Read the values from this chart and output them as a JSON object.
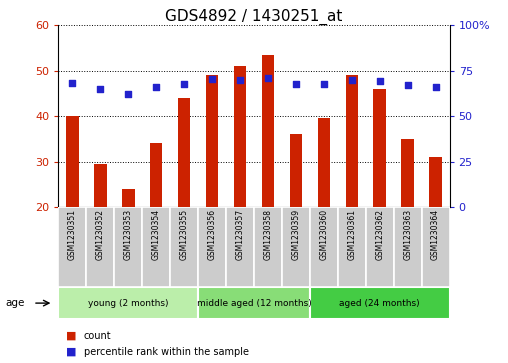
{
  "title": "GDS4892 / 1430251_at",
  "samples": [
    "GSM1230351",
    "GSM1230352",
    "GSM1230353",
    "GSM1230354",
    "GSM1230355",
    "GSM1230356",
    "GSM1230357",
    "GSM1230358",
    "GSM1230359",
    "GSM1230360",
    "GSM1230361",
    "GSM1230362",
    "GSM1230363",
    "GSM1230364"
  ],
  "counts": [
    40,
    29.5,
    24,
    34,
    44,
    49,
    51,
    53.5,
    36,
    39.5,
    49,
    46,
    35,
    31
  ],
  "percentiles": [
    68,
    65,
    62,
    66,
    67.5,
    70.5,
    70,
    71,
    67.5,
    67.5,
    70,
    69.5,
    67,
    66
  ],
  "ylim_left": [
    20,
    60
  ],
  "ylim_right": [
    0,
    100
  ],
  "yticks_left": [
    20,
    30,
    40,
    50,
    60
  ],
  "yticks_right": [
    0,
    25,
    50,
    75,
    100
  ],
  "bar_color": "#cc2200",
  "dot_color": "#2222cc",
  "groups": [
    {
      "label": "young (2 months)",
      "start": 0,
      "end": 5,
      "color": "#bbeeaa"
    },
    {
      "label": "middle aged (12 months)",
      "start": 5,
      "end": 9,
      "color": "#88dd77"
    },
    {
      "label": "aged (24 months)",
      "start": 9,
      "end": 14,
      "color": "#44cc44"
    }
  ],
  "legend_count_label": "count",
  "legend_pct_label": "percentile rank within the sample",
  "age_label": "age",
  "title_fontsize": 11,
  "axis_left_color": "#cc2200",
  "axis_right_color": "#2222cc",
  "sample_box_color": "#cccccc",
  "bar_width": 0.45
}
